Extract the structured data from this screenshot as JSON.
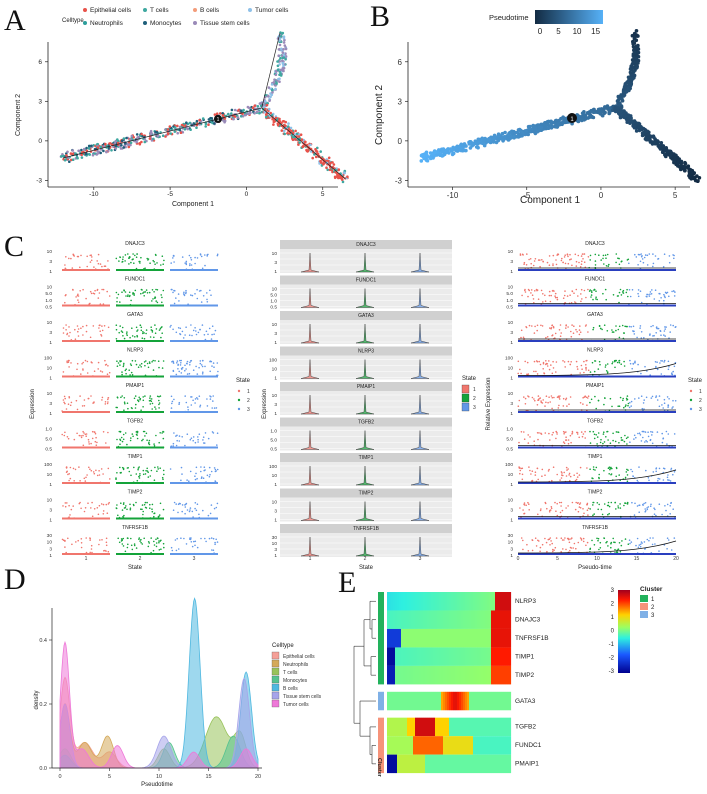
{
  "panels": {
    "A": "A",
    "B": "B",
    "C": "C",
    "D": "D",
    "E": "E"
  },
  "panelA": {
    "legend_title": "Celltype",
    "legend": [
      {
        "label": "Epithelial cells",
        "color": "#e8524a"
      },
      {
        "label": "T cells",
        "color": "#3ea8a0"
      },
      {
        "label": "B cells",
        "color": "#f39c7a"
      },
      {
        "label": "Tumor cells",
        "color": "#8fc1e8"
      },
      {
        "label": "Neutrophils",
        "color": "#2c9e9b"
      },
      {
        "label": "Monocytes",
        "color": "#1f5f7a"
      },
      {
        "label": "Tissue stem cells",
        "color": "#9a8ab8"
      }
    ],
    "xlabel": "Component 1",
    "ylabel": "Component 2",
    "xticks": [
      "-10",
      "-5",
      "0",
      "5"
    ],
    "yticks": [
      "6",
      "3",
      "0",
      "-3"
    ],
    "branch_node": "1"
  },
  "panelB": {
    "legend_title": "Pseudotime",
    "legend_ticks": [
      "0",
      "5",
      "10",
      "15"
    ],
    "xlabel": "Component 1",
    "ylabel": "Component 2",
    "xticks": [
      "-10",
      "-5",
      "0",
      "5"
    ],
    "yticks": [
      "6",
      "3",
      "0",
      "-3"
    ],
    "branch_node": "1"
  },
  "panelC": {
    "genes": [
      "DNAJC3",
      "FUNDC1",
      "GATA3",
      "NLRP3",
      "PMAIP1",
      "TGFB2",
      "TIMP1",
      "TIMP2",
      "TNFRSF1B"
    ],
    "ytick_sets": [
      [
        "10",
        "3",
        "1"
      ],
      [
        "10",
        "5.0",
        "1.0",
        "0.5"
      ],
      [
        "10",
        "3",
        "1"
      ],
      [
        "100",
        "10",
        "1"
      ],
      [
        "10",
        "3",
        "1"
      ],
      [
        "1.0",
        "5.0",
        "0.5"
      ],
      [
        "100",
        "10",
        "1"
      ],
      [
        "10",
        "3",
        "1"
      ],
      [
        "30",
        "10",
        "3",
        "1"
      ]
    ],
    "left": {
      "ylabel": "Expression",
      "xlabel": "State",
      "xticks": [
        "1",
        "2",
        "3"
      ]
    },
    "middle": {
      "ylabel": "Expression",
      "xlabel": "State",
      "xticks": [
        "1",
        "2",
        "3"
      ]
    },
    "right": {
      "ylabel": "Relative Expression",
      "xlabel": "Pseudo-time",
      "xticks": [
        "0",
        "5",
        "10",
        "15",
        "20"
      ]
    },
    "state_legend": {
      "title": "State",
      "items": [
        {
          "label": "1",
          "color": "#f0766d"
        },
        {
          "label": "2",
          "color": "#14a33a"
        },
        {
          "label": "3",
          "color": "#6197e8"
        }
      ]
    }
  },
  "panelD": {
    "xlabel": "Pseudotime",
    "ylabel": "density",
    "xticks": [
      "0",
      "5",
      "10",
      "15",
      "20"
    ],
    "yticks": [
      "0.0",
      "0.2",
      "0.4"
    ],
    "legend_title": "Celltype",
    "legend": [
      {
        "label": "Epithelial cells",
        "color": "#f59f97"
      },
      {
        "label": "Neutrophils",
        "color": "#d4a95a"
      },
      {
        "label": "T cells",
        "color": "#98c25a"
      },
      {
        "label": "Monocytes",
        "color": "#55c28f"
      },
      {
        "label": "B cells",
        "color": "#4fb8e0"
      },
      {
        "label": "Tissue stem cells",
        "color": "#a6a4ea"
      },
      {
        "label": "Tumor cells",
        "color": "#ee78d8"
      }
    ]
  },
  "panelE": {
    "genes": [
      "NLRP3",
      "DNAJC3",
      "TNFRSF1B",
      "TIMP1",
      "TIMP2",
      "GATA3",
      "TGFB2",
      "FUNDC1",
      "PMAIP1"
    ],
    "colorbar_ticks": [
      "3",
      "2",
      "1",
      "0",
      "-1",
      "-2",
      "-3"
    ],
    "cluster_title": "Cluster",
    "clusters": [
      {
        "label": "1",
        "color": "#22b25c"
      },
      {
        "label": "2",
        "color": "#f6937a"
      },
      {
        "label": "3",
        "color": "#7fb0e6"
      }
    ],
    "cluster_axis_label": "Cluster"
  }
}
